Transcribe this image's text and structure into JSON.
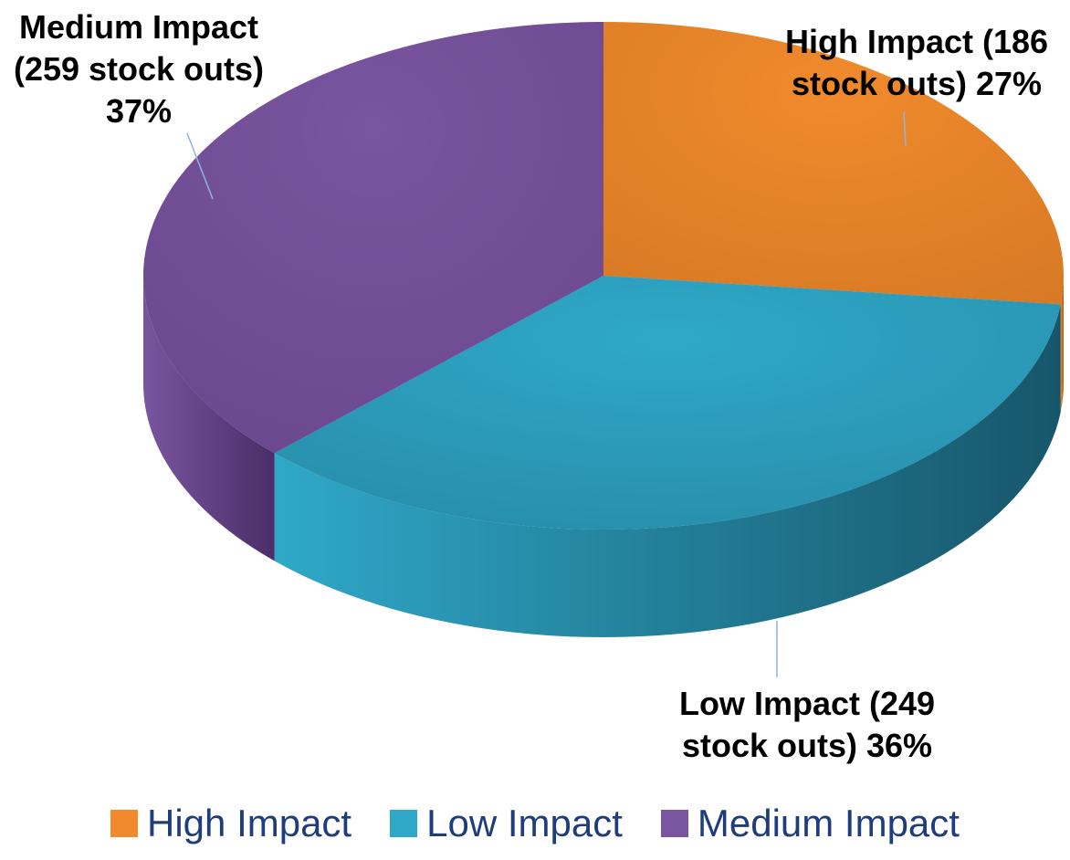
{
  "chart_data": {
    "type": "pie",
    "style": "3d",
    "slices": [
      {
        "name": "High Impact",
        "value": 186,
        "percent": 27,
        "label_lines": [
          "High Impact (186",
          "stock outs) 27%"
        ],
        "color": "#f08a2c",
        "side_color": "#a85a18"
      },
      {
        "name": "Low Impact",
        "value": 249,
        "percent": 36,
        "label_lines": [
          "Low Impact (249",
          "stock outs) 36%"
        ],
        "color": "#2fa8c8",
        "side_color": "#17566a"
      },
      {
        "name": "Medium Impact",
        "value": 259,
        "percent": 37,
        "label_lines": [
          "Medium Impact",
          "(259 stock outs)",
          "37%"
        ],
        "color": "#7a55a0",
        "side_color": "#4a2d68"
      }
    ],
    "legend": {
      "position": "bottom",
      "items": [
        {
          "label": "High Impact",
          "color": "#f08a2c"
        },
        {
          "label": "Low Impact",
          "color": "#2fa8c8"
        },
        {
          "label": "Medium Impact",
          "color": "#7a55a0"
        }
      ]
    },
    "label_color": "#000000",
    "legend_text_color": "#1f3d7a"
  }
}
